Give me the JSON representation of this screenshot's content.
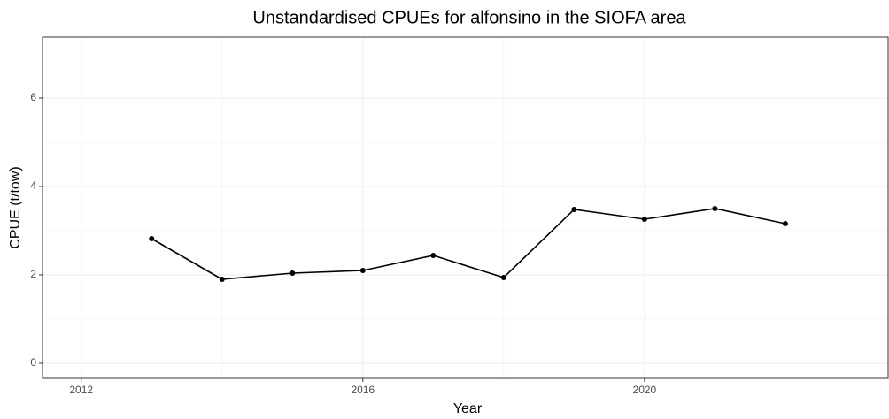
{
  "chart_data": {
    "type": "line",
    "title": "Unstandardised CPUEs for alfonsino in the SIOFA area",
    "x_label": "Year",
    "y_label": "CPUE (t/tow)",
    "x": [
      2013,
      2014,
      2015,
      2016,
      2017,
      2018,
      2019,
      2020,
      2021,
      2022
    ],
    "series": [
      {
        "name": "CPUE",
        "color": "#000000",
        "values": [
          2.82,
          1.9,
          2.04,
          2.1,
          2.44,
          1.94,
          3.48,
          3.26,
          3.5,
          3.16
        ]
      }
    ],
    "xlim": [
      2011.45,
      2023.46
    ],
    "xticks": [
      2012,
      2016,
      2020
    ],
    "ylim": [
      -0.34,
      7.38
    ],
    "yticks": [
      0,
      2,
      4,
      6
    ],
    "grid": true
  }
}
